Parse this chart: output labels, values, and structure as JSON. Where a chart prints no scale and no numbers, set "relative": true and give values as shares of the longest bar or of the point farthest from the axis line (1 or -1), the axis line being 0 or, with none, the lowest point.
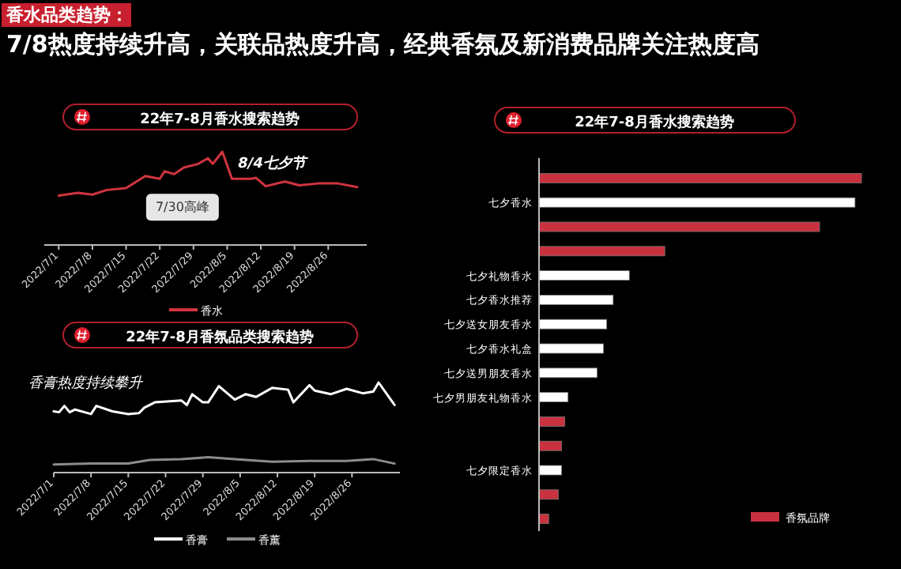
{
  "chart_data": [
    {
      "type": "other",
      "title": "香水品类趋势：",
      "subtitle": "7/8热度持续升高，关联品热度升高，经典香氛及新消费品牌关注热度高"
    },
    {
      "type": "line",
      "title": "22年7-8月香水搜索趋势",
      "relative": true,
      "xlim": [
        "2022-06-28",
        "2022-09-03"
      ],
      "xticks": [
        {
          "value": "2022-07-01",
          "label": "2022/7/1"
        },
        {
          "value": "2022-07-08",
          "label": "2022/7/8"
        },
        {
          "value": "2022-07-15",
          "label": "2022/7/15"
        },
        {
          "value": "2022-07-22",
          "label": "2022/7/22"
        },
        {
          "value": "2022-07-29",
          "label": "2022/7/29"
        },
        {
          "value": "2022-08-05",
          "label": "2022/8/5"
        },
        {
          "value": "2022-08-12",
          "label": "2022/8/12"
        },
        {
          "value": "2022-08-19",
          "label": "2022/8/19"
        },
        {
          "value": "2022-08-26",
          "label": "2022/8/26"
        }
      ],
      "series": [
        {
          "name": "香水",
          "color": "#d0343f",
          "x": [
            "2022-07-01",
            "2022-07-05",
            "2022-07-08",
            "2022-07-11",
            "2022-07-15",
            "2022-07-19",
            "2022-07-22",
            "2022-07-23",
            "2022-07-25",
            "2022-07-27",
            "2022-07-30",
            "2022-08-01",
            "2022-08-02",
            "2022-08-04",
            "2022-08-06",
            "2022-08-10",
            "2022-08-11",
            "2022-08-13",
            "2022-08-17",
            "2022-08-20",
            "2022-08-24",
            "2022-08-28",
            "2022-09-01"
          ],
          "values": [
            0.53,
            0.56,
            0.54,
            0.59,
            0.61,
            0.74,
            0.71,
            0.79,
            0.76,
            0.83,
            0.87,
            0.93,
            0.87,
            1.0,
            0.71,
            0.71,
            0.72,
            0.63,
            0.68,
            0.64,
            0.66,
            0.66,
            0.62
          ]
        }
      ],
      "annotations": [
        {
          "text": "8/4七夕节",
          "x": "2022-08-04",
          "y": 1.0
        },
        {
          "text": "7/30高峰",
          "x": "2022-07-30",
          "y": 0.87
        }
      ],
      "legend": "bottom",
      "line_style": "solid"
    },
    {
      "type": "bar",
      "title": "22年7-8月香水搜索趋势",
      "orientation": "horizontal",
      "relative": true,
      "categories": [
        null,
        "七夕香水",
        null,
        null,
        "七夕礼物香水",
        "七夕香水推荐",
        "七夕送女朋友香水",
        "七夕香水礼盒",
        "七夕送男朋友香水",
        "七夕男朋友礼物香水",
        null,
        null,
        "七夕限定香水",
        null,
        null
      ],
      "series": [
        {
          "name": "香氛品牌",
          "color": "#c8323f",
          "values": [
            1.0,
            null,
            0.87,
            0.39,
            null,
            null,
            null,
            null,
            null,
            null,
            0.08,
            0.07,
            null,
            0.06,
            0.03
          ]
        },
        {
          "color": "#ffffff",
          "values": [
            null,
            0.98,
            null,
            null,
            0.28,
            0.23,
            0.21,
            0.2,
            0.18,
            0.09,
            null,
            null,
            0.07,
            null,
            null
          ]
        }
      ],
      "legend": "bottom right"
    },
    {
      "type": "line",
      "title": "22年7-8月香氛品类搜索趋势",
      "relative": true,
      "xlim": [
        "2022-07-01",
        "2022-09-04"
      ],
      "xticks": [
        {
          "value": "2022-07-01",
          "label": "2022/7/1"
        },
        {
          "value": "2022-07-08",
          "label": "2022/7/8"
        },
        {
          "value": "2022-07-15",
          "label": "2022/7/15"
        },
        {
          "value": "2022-07-22",
          "label": "2022/7/22"
        },
        {
          "value": "2022-07-29",
          "label": "2022/7/29"
        },
        {
          "value": "2022-08-05",
          "label": "2022/8/5"
        },
        {
          "value": "2022-08-12",
          "label": "2022/8/12"
        },
        {
          "value": "2022-08-19",
          "label": "2022/8/19"
        },
        {
          "value": "2022-08-26",
          "label": "2022/8/26"
        }
      ],
      "series": [
        {
          "name": "香膏",
          "color": "#ffffff",
          "x": [
            "2022-07-01",
            "2022-07-02",
            "2022-07-03",
            "2022-07-04",
            "2022-07-05",
            "2022-07-08",
            "2022-07-09",
            "2022-07-12",
            "2022-07-15",
            "2022-07-17",
            "2022-07-18",
            "2022-07-20",
            "2022-07-25",
            "2022-07-26",
            "2022-07-27",
            "2022-07-29",
            "2022-07-30",
            "2022-08-01",
            "2022-08-04",
            "2022-08-06",
            "2022-08-08",
            "2022-08-11",
            "2022-08-14",
            "2022-08-15",
            "2022-08-18",
            "2022-08-19",
            "2022-08-22",
            "2022-08-25",
            "2022-08-28",
            "2022-08-30",
            "2022-08-31",
            "2022-09-03"
          ],
          "values": [
            0.68,
            0.67,
            0.74,
            0.67,
            0.7,
            0.65,
            0.74,
            0.68,
            0.65,
            0.66,
            0.72,
            0.78,
            0.8,
            0.75,
            0.87,
            0.78,
            0.78,
            0.96,
            0.81,
            0.87,
            0.84,
            0.94,
            0.92,
            0.78,
            0.97,
            0.91,
            0.87,
            0.93,
            0.88,
            0.9,
            1.0,
            0.75
          ]
        },
        {
          "name": "香薰",
          "color": "#8c8c8c",
          "x": [
            "2022-07-01",
            "2022-07-08",
            "2022-07-15",
            "2022-07-19",
            "2022-07-25",
            "2022-07-30",
            "2022-08-04",
            "2022-08-11",
            "2022-08-18",
            "2022-08-25",
            "2022-08-30",
            "2022-09-03"
          ],
          "values": [
            0.09,
            0.1,
            0.1,
            0.14,
            0.15,
            0.17,
            0.15,
            0.12,
            0.13,
            0.13,
            0.15,
            0.1
          ]
        }
      ],
      "annotations": [
        "香膏热度持续攀升"
      ],
      "legend": "bottom",
      "line_style": "solid"
    }
  ]
}
